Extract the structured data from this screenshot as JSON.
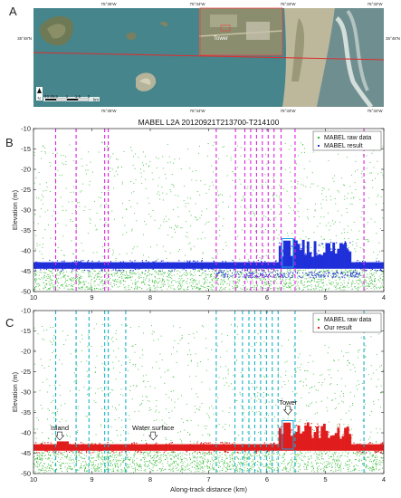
{
  "panel_labels": [
    "A",
    "B",
    "C"
  ],
  "map": {
    "top_coords": [
      "75°35'W",
      "75°34'W",
      "75°33'W",
      "75°32'W"
    ],
    "bottom_coords": [
      "75°35'W",
      "75°34'W",
      "75°33'W",
      "75°32'W"
    ],
    "left_lat": "35°48'N",
    "right_lat": "35°48'N",
    "inset_label": "Tower",
    "north_label": "N",
    "scale_values": [
      "0",
      "0.25",
      ".5",
      "1",
      "1.5",
      "2"
    ],
    "scale_unit": "km",
    "colors": {
      "water": "#4a8a90",
      "land": "#b9b49a",
      "track": "#d93030",
      "inset_box": "#e84040"
    }
  },
  "chart_data": [
    {
      "type": "scatter",
      "title": "MABEL L2A 20120921T213700-T214100",
      "xlabel": "",
      "ylabel": "Elevation (m)",
      "xlim": [
        10,
        4
      ],
      "ylim": [
        -50,
        -10
      ],
      "x_ticks": [
        10,
        9,
        8,
        7,
        6,
        5,
        4
      ],
      "y_ticks": [
        -10,
        -15,
        -20,
        -25,
        -30,
        -35,
        -40,
        -45,
        -50
      ],
      "grid": false,
      "legend_placement": "top-right",
      "series": [
        {
          "name": "MABEL raw data",
          "color": "#33bb33",
          "marker": "dot"
        },
        {
          "name": "MABEL result",
          "color": "#1f2fd9",
          "marker": "dot"
        }
      ],
      "surface_elevation": -43.5,
      "tower_region": {
        "x": [
          5.74,
          5.55
        ],
        "y": [
          -44,
          -37
        ]
      },
      "segment_boundaries": [
        9.62,
        9.27,
        8.78,
        8.72,
        6.87,
        6.54,
        6.38,
        6.28,
        6.18,
        6.08,
        5.98,
        5.88,
        5.76,
        5.52,
        4.34
      ],
      "boundary_color": "#e020e0"
    },
    {
      "type": "scatter",
      "title": "",
      "xlabel": "Along-track distance (km)",
      "ylabel": "Elevation (m)",
      "xlim": [
        10,
        4
      ],
      "ylim": [
        -50,
        -10
      ],
      "x_ticks": [
        10,
        9,
        8,
        7,
        6,
        5,
        4
      ],
      "y_ticks": [
        -10,
        -15,
        -20,
        -25,
        -30,
        -35,
        -40,
        -45,
        -50
      ],
      "grid": false,
      "legend_placement": "top-right",
      "series": [
        {
          "name": "MABEL raw data",
          "color": "#33bb33",
          "marker": "dot"
        },
        {
          "name": "Our result",
          "color": "#e01c1c",
          "marker": "dot"
        }
      ],
      "surface_elevation": -43.5,
      "tower_region": {
        "x": [
          5.74,
          5.55
        ],
        "y": [
          -44,
          -37
        ]
      },
      "segment_boundaries": [
        9.62,
        9.27,
        9.05,
        8.78,
        8.72,
        8.42,
        6.87,
        6.55,
        6.42,
        6.31,
        6.21,
        6.11,
        6.01,
        5.91,
        5.81,
        5.52,
        4.34
      ],
      "boundary_color": "#14b3c8",
      "annotations": [
        {
          "text": "Island",
          "x": 9.55,
          "y": -41.8
        },
        {
          "text": "Water surface",
          "x": 7.95,
          "y": -41.8
        },
        {
          "text": "Tower",
          "x": 5.64,
          "y": -35.5
        }
      ]
    }
  ]
}
